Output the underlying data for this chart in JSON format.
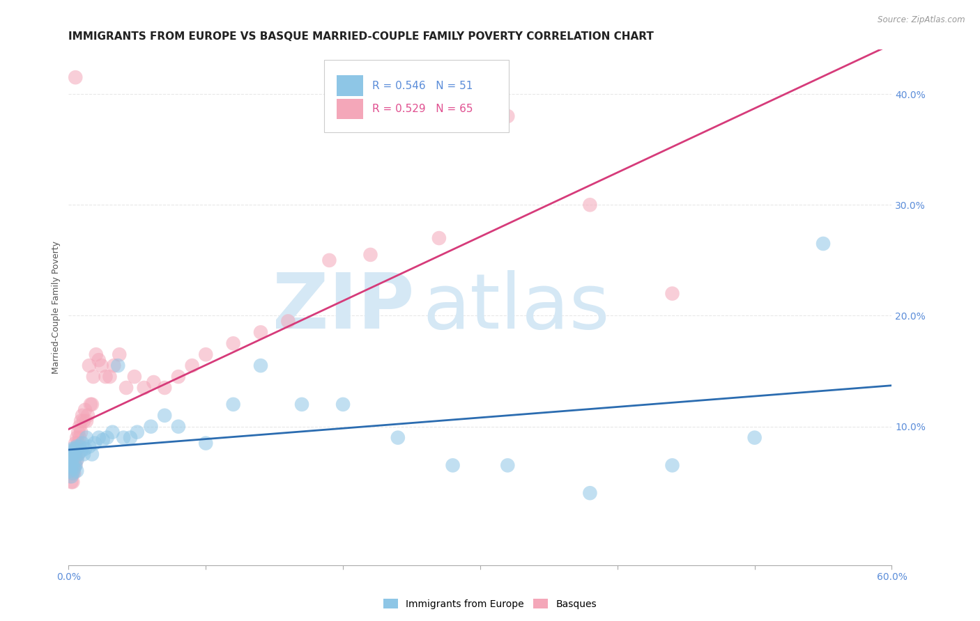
{
  "title": "IMMIGRANTS FROM EUROPE VS BASQUE MARRIED-COUPLE FAMILY POVERTY CORRELATION CHART",
  "source": "Source: ZipAtlas.com",
  "ylabel": "Married-Couple Family Poverty",
  "xlim": [
    0.0,
    0.6
  ],
  "ylim": [
    -0.025,
    0.44
  ],
  "xtick_vals": [
    0.0,
    0.1,
    0.2,
    0.3,
    0.4,
    0.5,
    0.6
  ],
  "xtick_label_0": "0.0%",
  "xtick_label_last": "60.0%",
  "ytick_vals": [
    0.1,
    0.2,
    0.3,
    0.4
  ],
  "ytick_labels": [
    "10.0%",
    "20.0%",
    "30.0%",
    "40.0%"
  ],
  "blue_R": "R = 0.546",
  "blue_N": "N = 51",
  "pink_R": "R = 0.529",
  "pink_N": "N = 65",
  "blue_color": "#8ec6e6",
  "pink_color": "#f4a7b9",
  "blue_line_color": "#2b6cb0",
  "pink_line_color": "#d63b7a",
  "watermark_zip": "ZIP",
  "watermark_atlas": "atlas",
  "watermark_color": "#d5e8f5",
  "background_color": "#ffffff",
  "grid_color": "#e8e8e8",
  "tick_color": "#5b8dd9",
  "blue_x": [
    0.001,
    0.001,
    0.001,
    0.002,
    0.002,
    0.002,
    0.002,
    0.003,
    0.003,
    0.003,
    0.003,
    0.004,
    0.004,
    0.005,
    0.005,
    0.006,
    0.006,
    0.006,
    0.007,
    0.008,
    0.009,
    0.01,
    0.011,
    0.012,
    0.013,
    0.015,
    0.017,
    0.019,
    0.022,
    0.025,
    0.028,
    0.032,
    0.036,
    0.04,
    0.045,
    0.05,
    0.06,
    0.07,
    0.08,
    0.1,
    0.12,
    0.14,
    0.17,
    0.2,
    0.24,
    0.28,
    0.32,
    0.38,
    0.44,
    0.5,
    0.55
  ],
  "blue_y": [
    0.075,
    0.065,
    0.06,
    0.078,
    0.07,
    0.068,
    0.055,
    0.08,
    0.072,
    0.065,
    0.058,
    0.075,
    0.062,
    0.08,
    0.065,
    0.082,
    0.07,
    0.06,
    0.075,
    0.082,
    0.078,
    0.085,
    0.075,
    0.08,
    0.09,
    0.082,
    0.075,
    0.085,
    0.09,
    0.088,
    0.09,
    0.095,
    0.155,
    0.09,
    0.09,
    0.095,
    0.1,
    0.11,
    0.1,
    0.085,
    0.12,
    0.155,
    0.12,
    0.12,
    0.09,
    0.065,
    0.065,
    0.04,
    0.065,
    0.09,
    0.265
  ],
  "pink_x": [
    0.001,
    0.001,
    0.001,
    0.001,
    0.002,
    0.002,
    0.002,
    0.002,
    0.002,
    0.003,
    0.003,
    0.003,
    0.003,
    0.003,
    0.004,
    0.004,
    0.004,
    0.004,
    0.005,
    0.005,
    0.005,
    0.006,
    0.006,
    0.006,
    0.007,
    0.007,
    0.007,
    0.008,
    0.008,
    0.009,
    0.009,
    0.01,
    0.011,
    0.012,
    0.013,
    0.014,
    0.015,
    0.016,
    0.017,
    0.018,
    0.02,
    0.022,
    0.024,
    0.027,
    0.03,
    0.033,
    0.037,
    0.042,
    0.048,
    0.055,
    0.062,
    0.07,
    0.08,
    0.09,
    0.1,
    0.12,
    0.14,
    0.16,
    0.19,
    0.22,
    0.27,
    0.32,
    0.38,
    0.44,
    0.005
  ],
  "pink_y": [
    0.07,
    0.065,
    0.06,
    0.055,
    0.072,
    0.065,
    0.06,
    0.058,
    0.05,
    0.075,
    0.068,
    0.062,
    0.058,
    0.05,
    0.078,
    0.07,
    0.065,
    0.058,
    0.085,
    0.075,
    0.065,
    0.09,
    0.08,
    0.07,
    0.095,
    0.085,
    0.075,
    0.1,
    0.09,
    0.105,
    0.095,
    0.11,
    0.105,
    0.115,
    0.105,
    0.11,
    0.155,
    0.12,
    0.12,
    0.145,
    0.165,
    0.16,
    0.155,
    0.145,
    0.145,
    0.155,
    0.165,
    0.135,
    0.145,
    0.135,
    0.14,
    0.135,
    0.145,
    0.155,
    0.165,
    0.175,
    0.185,
    0.195,
    0.25,
    0.255,
    0.27,
    0.38,
    0.3,
    0.22,
    0.415
  ],
  "title_fontsize": 11,
  "axis_label_fontsize": 9,
  "tick_fontsize": 10,
  "legend_fontsize": 11
}
